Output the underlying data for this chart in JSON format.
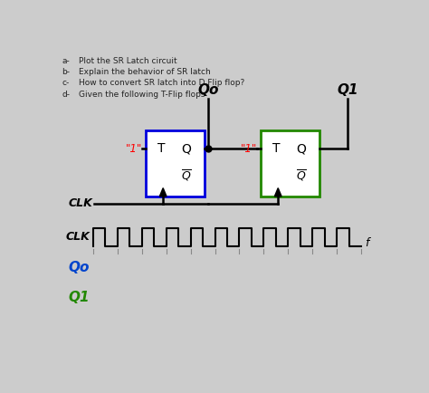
{
  "bg_color": "#cccccc",
  "text_color": "#000000",
  "questions": [
    [
      "a-",
      "Plot the SR Latch circuit"
    ],
    [
      "b-",
      "Explain the behavior of SR latch"
    ],
    [
      "c-",
      "How to convert SR latch into D Flip flop?"
    ],
    [
      "d-",
      "Given the following T-Flip flops"
    ]
  ],
  "ff1_color": "#0000dd",
  "ff2_color": "#228800",
  "Qo_color": "#000000",
  "Q1_color": "#000000",
  "Qo_wave_color": "#0044cc",
  "Q1_wave_color": "#228800",
  "clk_wave_color": "#000000"
}
